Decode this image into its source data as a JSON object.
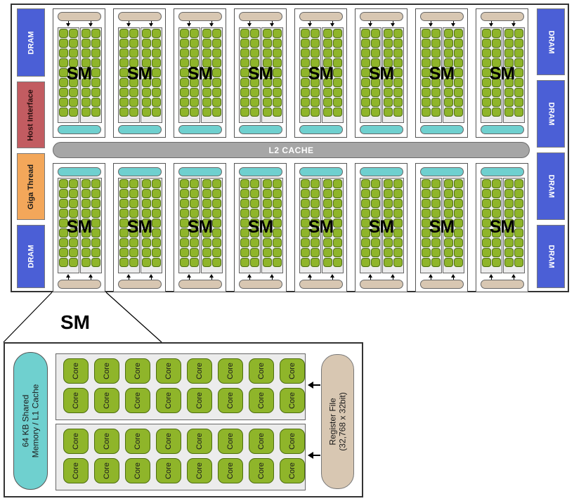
{
  "chip": {
    "dram_label": "DRAM",
    "host_interface": "Host Interface",
    "giga_thread": "Giga Thread",
    "l2_cache": "L2 CACHE",
    "sm_label": "SM",
    "sm_count_per_row": 8
  },
  "detail": {
    "title": "SM",
    "shared_memory": [
      "64 KB Shared",
      "Memory / L1 Cache"
    ],
    "register_file": [
      "Register File",
      "(32,768 x 32bit)"
    ],
    "core_label": "Core",
    "cores_per_row": 8,
    "core_rows": 4
  },
  "colors": {
    "dram": "#4b5fd6",
    "host_interface": "#c25c61",
    "giga_thread": "#f3a75a",
    "core": "#8fb52a",
    "cache": "#6fd0cf",
    "register": "#d8c7b2",
    "l2": "#a6a6a6"
  }
}
